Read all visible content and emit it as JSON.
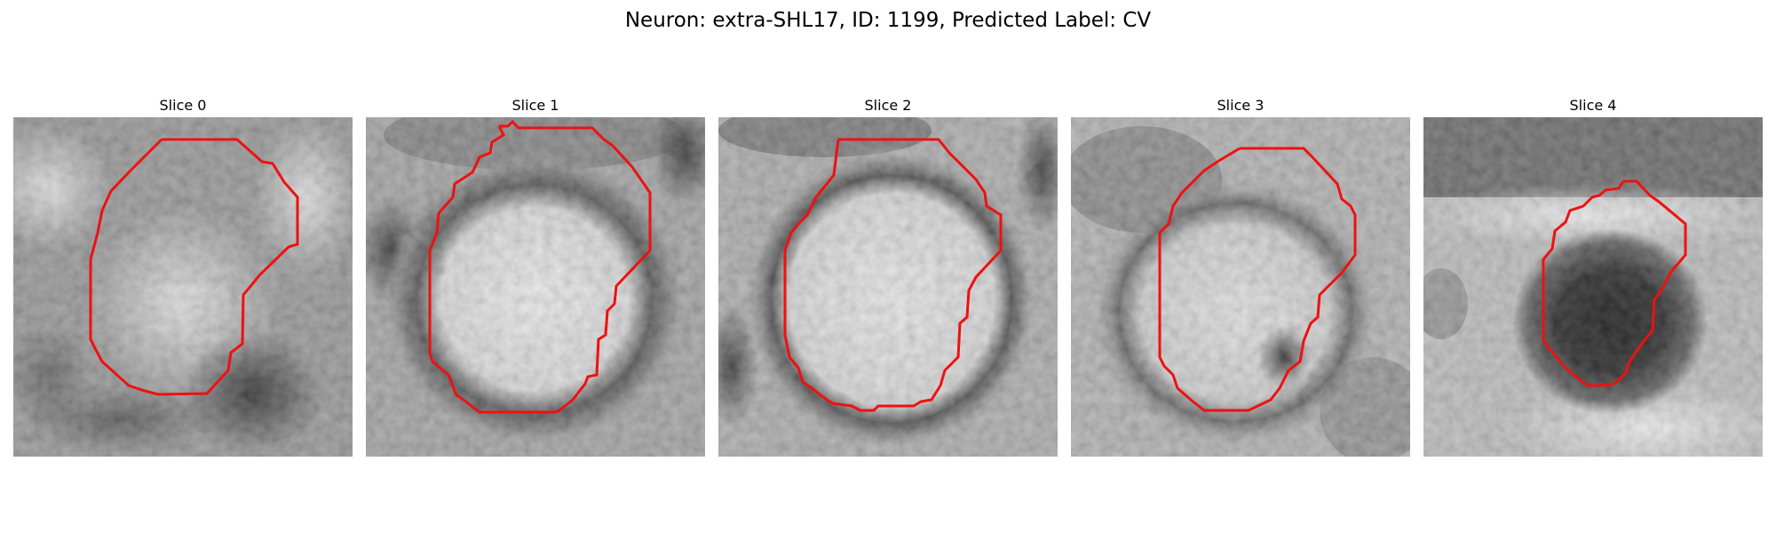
{
  "figure": {
    "title": "Neuron: extra-SHL17, ID: 1199, Predicted Label: CV"
  },
  "panels": [
    {
      "title": "Slice 0",
      "image": "grayscale-em-patch",
      "overlay": "red-contour"
    },
    {
      "title": "Slice 1",
      "image": "grayscale-em-patch",
      "overlay": "red-contour"
    },
    {
      "title": "Slice 2",
      "image": "grayscale-em-patch",
      "overlay": "red-contour"
    },
    {
      "title": "Slice 3",
      "image": "grayscale-em-patch",
      "overlay": "red-contour"
    },
    {
      "title": "Slice 4",
      "image": "grayscale-em-patch",
      "overlay": "red-contour"
    }
  ],
  "colors": {
    "contour": "#ee1111"
  }
}
